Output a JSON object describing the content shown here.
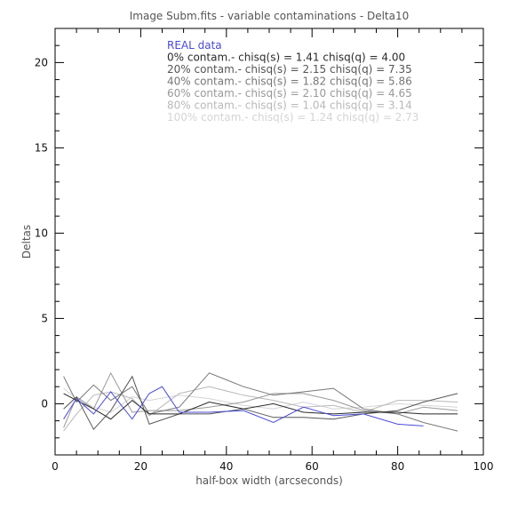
{
  "chart_data": {
    "type": "line",
    "title": "Image Subm.fits - variable contaminations - Delta10",
    "xlabel": "half-box width (arcseconds)",
    "ylabel": "Deltas",
    "xlim": [
      0,
      100
    ],
    "ylim": [
      -3,
      22
    ],
    "x_ticks": [
      0,
      20,
      40,
      60,
      80,
      100
    ],
    "y_ticks": [
      0,
      5,
      10,
      15,
      20
    ],
    "grid": false,
    "legend_position": "top-center",
    "series": [
      {
        "name": "REAL data",
        "color": "#4a4ad8",
        "x": [
          2,
          5,
          9,
          13,
          18,
          22,
          25,
          29,
          36,
          44,
          51,
          58,
          65,
          72,
          80,
          86
        ],
        "y": [
          -0.9,
          0.3,
          -0.6,
          0.7,
          -0.9,
          0.6,
          1.0,
          -0.5,
          -0.5,
          -0.4,
          -1.1,
          -0.2,
          -0.7,
          -0.6,
          -1.2,
          -1.3
        ]
      },
      {
        "name": "0% contam.- chisq(s) = 1.41 chisq(q) = 4.00",
        "color": "#2a2a2a",
        "x": [
          2,
          5,
          9,
          13,
          18,
          22,
          29,
          36,
          44,
          51,
          58,
          65,
          72,
          80,
          86,
          94
        ],
        "y": [
          0.6,
          0.2,
          -0.3,
          -0.9,
          0.2,
          -0.6,
          -0.6,
          0.1,
          -0.3,
          0.0,
          -0.5,
          -0.6,
          -0.5,
          -0.5,
          -0.6,
          -0.6
        ]
      },
      {
        "name": "20% contam.- chisq(s) = 2.15 chisq(q) = 7.35",
        "color": "#555555",
        "x": [
          2,
          5,
          9,
          13,
          18,
          22,
          29,
          36,
          44,
          51,
          58,
          65,
          72,
          80,
          86,
          94
        ],
        "y": [
          -0.3,
          0.4,
          -1.5,
          -0.4,
          1.6,
          -1.2,
          -0.6,
          -0.6,
          -0.3,
          -0.8,
          -0.8,
          -0.9,
          -0.6,
          -0.4,
          0.1,
          0.6
        ]
      },
      {
        "name": "40% contam.- chisq(s) = 1.82 chisq(q) = 5.86",
        "color": "#777777",
        "x": [
          2,
          5,
          9,
          13,
          18,
          22,
          29,
          36,
          44,
          51,
          58,
          65,
          72,
          80,
          86,
          94
        ],
        "y": [
          1.6,
          0.1,
          1.1,
          0.2,
          1.0,
          -0.6,
          -0.2,
          1.8,
          1.0,
          0.5,
          0.7,
          0.9,
          -0.3,
          -0.6,
          -1.1,
          -1.6
        ]
      },
      {
        "name": "60% contam.- chisq(s) = 2.10 chisq(q) = 4.65",
        "color": "#999999",
        "x": [
          2,
          5,
          9,
          13,
          18,
          22,
          29,
          36,
          44,
          51,
          58,
          65,
          72,
          80,
          86,
          94
        ],
        "y": [
          -1.4,
          0.4,
          -0.3,
          1.8,
          -0.5,
          -0.4,
          -0.4,
          -0.2,
          0.1,
          0.6,
          0.6,
          0.2,
          -0.4,
          -0.6,
          -0.2,
          -0.4
        ]
      },
      {
        "name": "80% contam.- chisq(s) = 1.04 chisq(q) = 3.14",
        "color": "#b8b8b8",
        "x": [
          2,
          5,
          9,
          13,
          18,
          22,
          29,
          36,
          44,
          51,
          58,
          65,
          72,
          80,
          86,
          94
        ],
        "y": [
          -1.6,
          -0.6,
          0.5,
          0.7,
          0.3,
          -0.7,
          0.6,
          1.0,
          0.5,
          0.2,
          -0.2,
          -0.1,
          -0.5,
          0.2,
          0.2,
          0.1
        ]
      },
      {
        "name": "100% contam.- chisq(s) = 1.24 chisq(q) = 2.73",
        "color": "#d4d4d4",
        "x": [
          2,
          5,
          9,
          13,
          18,
          22,
          29,
          36,
          44,
          51,
          58,
          65,
          72,
          80,
          86,
          94
        ],
        "y": [
          0.9,
          0.3,
          -0.2,
          -0.5,
          0.4,
          0.2,
          0.5,
          0.3,
          -0.1,
          -0.3,
          0.1,
          -0.3,
          -0.2,
          0.0,
          -0.1,
          -0.2
        ]
      }
    ]
  }
}
